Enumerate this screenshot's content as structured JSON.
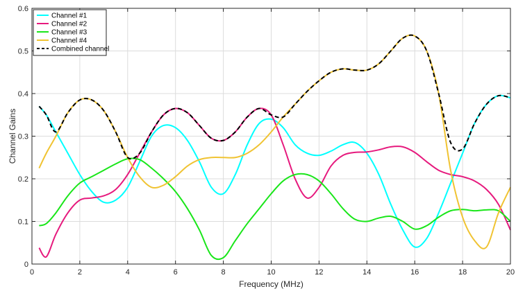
{
  "chart_data": {
    "type": "line",
    "title": "",
    "xlabel": "Frequency (MHz)",
    "ylabel": "Channel Gains",
    "xlim": [
      0,
      20
    ],
    "ylim": [
      0,
      0.6
    ],
    "xticks": [
      0,
      2,
      4,
      6,
      8,
      10,
      12,
      14,
      16,
      18,
      20
    ],
    "yticks": [
      0,
      0.1,
      0.2,
      0.3,
      0.4,
      0.5,
      0.6
    ],
    "xtick_labels": [
      "0",
      "2",
      "4",
      "6",
      "8",
      "10",
      "12",
      "14",
      "16",
      "18",
      "20"
    ],
    "ytick_labels": [
      "0",
      "0.1",
      "0.2",
      "0.3",
      "0.4",
      "0.5",
      "0.6"
    ],
    "grid": true,
    "legend_position": "top-left",
    "series": [
      {
        "name": "Channel #1",
        "color": "#00ffff",
        "dash": "solid",
        "x": [
          0.3,
          0.6,
          1.0,
          1.5,
          2.0,
          2.5,
          3.0,
          3.5,
          4.0,
          4.5,
          5.0,
          5.5,
          6.0,
          6.5,
          7.0,
          7.5,
          8.0,
          8.5,
          9.0,
          9.5,
          10.0,
          10.5,
          11.0,
          11.5,
          12.0,
          12.5,
          13.0,
          13.5,
          14.0,
          14.5,
          15.0,
          15.5,
          16.0,
          16.5,
          17.0,
          17.5,
          18.0,
          18.5,
          19.0,
          19.5,
          20.0
        ],
        "y": [
          0.37,
          0.35,
          0.31,
          0.26,
          0.21,
          0.17,
          0.145,
          0.15,
          0.18,
          0.24,
          0.3,
          0.325,
          0.32,
          0.29,
          0.24,
          0.18,
          0.165,
          0.21,
          0.28,
          0.33,
          0.34,
          0.32,
          0.28,
          0.26,
          0.255,
          0.265,
          0.28,
          0.285,
          0.26,
          0.21,
          0.14,
          0.08,
          0.04,
          0.06,
          0.12,
          0.19,
          0.26,
          0.33,
          0.375,
          0.395,
          0.39
        ]
      },
      {
        "name": "Channel #2",
        "color": "#e6197d",
        "dash": "solid",
        "x": [
          0.3,
          0.6,
          1.0,
          1.5,
          2.0,
          2.5,
          3.0,
          3.5,
          4.0,
          4.5,
          5.0,
          5.5,
          6.0,
          6.5,
          7.0,
          7.5,
          8.0,
          8.5,
          9.0,
          9.5,
          10.0,
          10.5,
          11.0,
          11.5,
          12.0,
          12.5,
          13.0,
          13.5,
          14.0,
          14.5,
          15.0,
          15.5,
          16.0,
          16.5,
          17.0,
          17.5,
          18.0,
          18.5,
          19.0,
          19.5,
          20.0
        ],
        "y": [
          0.038,
          0.017,
          0.07,
          0.12,
          0.15,
          0.155,
          0.16,
          0.175,
          0.21,
          0.26,
          0.31,
          0.35,
          0.365,
          0.355,
          0.325,
          0.295,
          0.29,
          0.31,
          0.345,
          0.365,
          0.35,
          0.28,
          0.2,
          0.155,
          0.18,
          0.23,
          0.255,
          0.262,
          0.263,
          0.268,
          0.275,
          0.275,
          0.262,
          0.24,
          0.22,
          0.21,
          0.205,
          0.195,
          0.175,
          0.14,
          0.08
        ]
      },
      {
        "name": "Channel #3",
        "color": "#19e619",
        "dash": "solid",
        "x": [
          0.3,
          0.6,
          1.0,
          1.5,
          2.0,
          2.5,
          3.0,
          3.5,
          4.0,
          4.5,
          5.0,
          5.5,
          6.0,
          6.5,
          7.0,
          7.5,
          8.0,
          8.5,
          9.0,
          9.5,
          10.0,
          10.5,
          11.0,
          11.5,
          12.0,
          12.5,
          13.0,
          13.5,
          14.0,
          14.5,
          15.0,
          15.5,
          16.0,
          16.5,
          17.0,
          17.5,
          18.0,
          18.5,
          19.0,
          19.5,
          20.0
        ],
        "y": [
          0.09,
          0.095,
          0.12,
          0.16,
          0.19,
          0.205,
          0.22,
          0.235,
          0.247,
          0.245,
          0.225,
          0.2,
          0.17,
          0.13,
          0.08,
          0.02,
          0.015,
          0.055,
          0.095,
          0.13,
          0.165,
          0.195,
          0.21,
          0.21,
          0.195,
          0.165,
          0.13,
          0.105,
          0.1,
          0.108,
          0.112,
          0.1,
          0.082,
          0.09,
          0.11,
          0.125,
          0.128,
          0.125,
          0.127,
          0.125,
          0.1
        ]
      },
      {
        "name": "Channel #4",
        "color": "#f0c332",
        "dash": "solid",
        "x": [
          0.3,
          0.6,
          1.0,
          1.5,
          2.0,
          2.5,
          3.0,
          3.5,
          4.0,
          4.5,
          5.0,
          5.5,
          6.0,
          6.5,
          7.0,
          7.5,
          8.0,
          8.5,
          9.0,
          9.5,
          10.0,
          10.5,
          11.0,
          11.5,
          12.0,
          12.5,
          13.0,
          13.5,
          14.0,
          14.5,
          15.0,
          15.5,
          16.0,
          16.5,
          17.0,
          17.5,
          18.0,
          18.5,
          19.0,
          19.5,
          20.0
        ],
        "y": [
          0.225,
          0.26,
          0.3,
          0.355,
          0.385,
          0.385,
          0.36,
          0.31,
          0.25,
          0.205,
          0.18,
          0.185,
          0.205,
          0.23,
          0.245,
          0.25,
          0.25,
          0.25,
          0.26,
          0.28,
          0.31,
          0.345,
          0.375,
          0.405,
          0.43,
          0.45,
          0.458,
          0.455,
          0.455,
          0.47,
          0.5,
          0.53,
          0.535,
          0.5,
          0.4,
          0.22,
          0.11,
          0.055,
          0.04,
          0.12,
          0.18
        ]
      },
      {
        "name": "Combined channel",
        "color": "#000000",
        "dash": "dashed",
        "x": [
          0.3,
          0.6,
          1.0,
          1.5,
          2.0,
          2.5,
          3.0,
          3.5,
          4.0,
          4.5,
          5.0,
          5.5,
          6.0,
          6.5,
          7.0,
          7.5,
          8.0,
          8.5,
          9.0,
          9.5,
          10.0,
          10.5,
          11.0,
          11.5,
          12.0,
          12.5,
          13.0,
          13.5,
          14.0,
          14.5,
          15.0,
          15.5,
          16.0,
          16.5,
          17.0,
          17.5,
          18.0,
          18.5,
          19.0,
          19.5,
          20.0
        ],
        "y": [
          0.37,
          0.35,
          0.31,
          0.355,
          0.385,
          0.385,
          0.36,
          0.31,
          0.25,
          0.26,
          0.31,
          0.35,
          0.365,
          0.355,
          0.325,
          0.295,
          0.29,
          0.31,
          0.345,
          0.365,
          0.35,
          0.345,
          0.375,
          0.405,
          0.43,
          0.45,
          0.458,
          0.455,
          0.455,
          0.47,
          0.5,
          0.53,
          0.535,
          0.5,
          0.4,
          0.285,
          0.27,
          0.33,
          0.375,
          0.395,
          0.39
        ]
      }
    ]
  }
}
